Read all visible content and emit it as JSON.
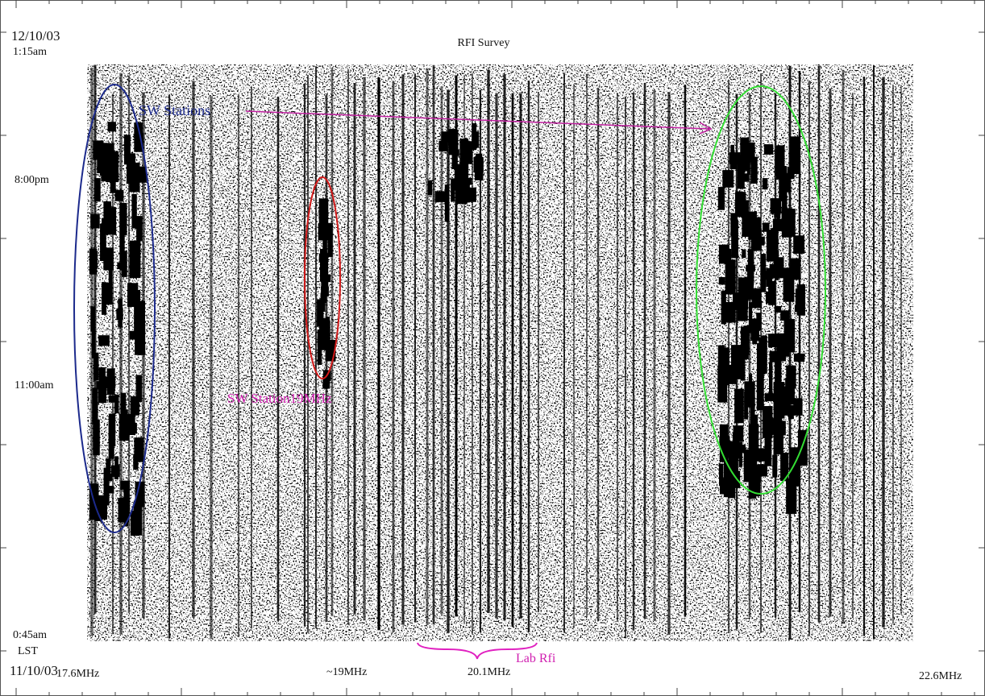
{
  "header": {
    "date_top": "12/10/03",
    "time_top": "1:15am",
    "title": "RFI Survey"
  },
  "y_labels": [
    "8:00pm",
    "11:00am",
    "0:45am"
  ],
  "footer": {
    "timezone": "LST",
    "date_bottom": "11/10/03"
  },
  "x_labels": [
    "17.6MHz",
    "~19MHz",
    "20.1MHz",
    "22.6MHz"
  ],
  "annotations": {
    "sw_stations": "SW Stations",
    "sw_station_19": "SW Station19MHz",
    "lab_rfi": "Lab Rfi"
  }
}
